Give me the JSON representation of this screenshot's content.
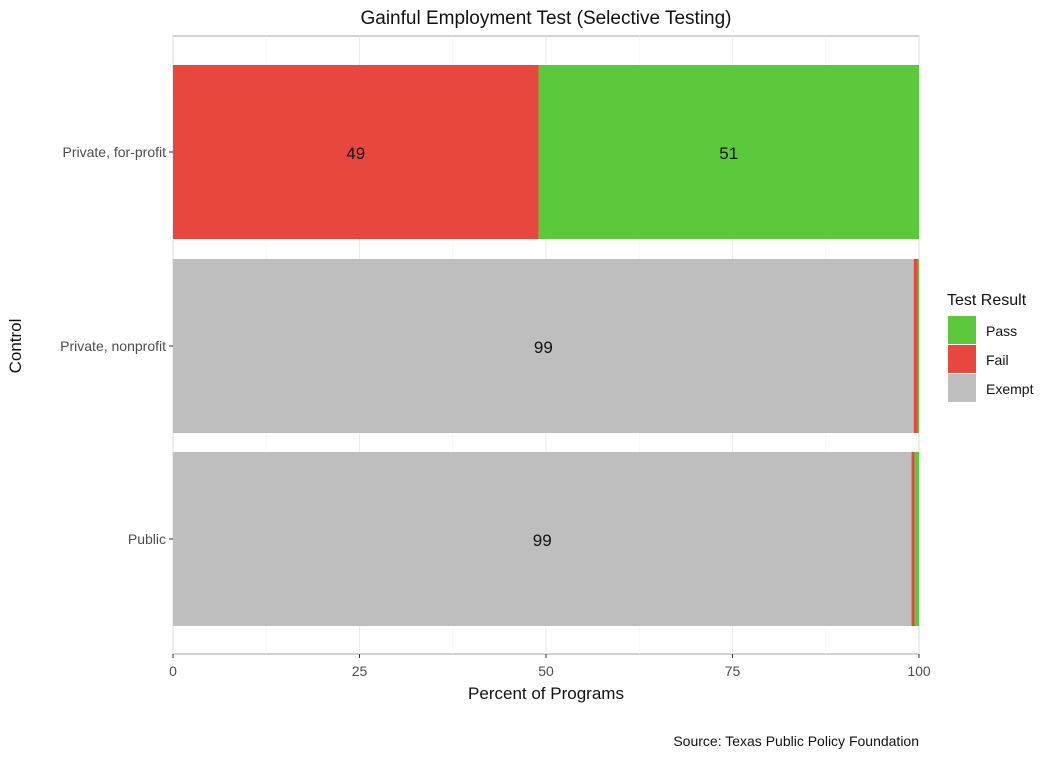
{
  "chart_data": {
    "type": "bar",
    "orientation": "horizontal",
    "stacked": true,
    "title": "Gainful Employment Test (Selective Testing)",
    "xlabel": "Percent of Programs",
    "ylabel": "Control",
    "xlim": [
      0,
      100
    ],
    "x_ticks": [
      0,
      25,
      50,
      75,
      100
    ],
    "x_tick_labels": [
      "0",
      "25",
      "50",
      "75",
      "100"
    ],
    "categories": [
      "Private, for-profit",
      "Private, nonprofit",
      "Public"
    ],
    "series": [
      {
        "name": "Exempt",
        "color": "#bebebe",
        "values": [
          0,
          99.3,
          99.0
        ]
      },
      {
        "name": "Fail",
        "color": "#e8473f",
        "values": [
          49,
          0.5,
          0.4
        ]
      },
      {
        "name": "Pass",
        "color": "#5bc93b",
        "values": [
          51,
          0.2,
          0.6
        ]
      }
    ],
    "data_labels": [
      {
        "category": "Private, for-profit",
        "series": "Fail",
        "text": "49"
      },
      {
        "category": "Private, for-profit",
        "series": "Pass",
        "text": "51"
      },
      {
        "category": "Private, nonprofit",
        "series": "Exempt",
        "text": "99"
      },
      {
        "category": "Public",
        "series": "Exempt",
        "text": "99"
      }
    ],
    "legend": {
      "title": "Test Result",
      "position": "right",
      "entries": [
        {
          "label": "Pass",
          "color": "#5bc93b"
        },
        {
          "label": "Fail",
          "color": "#e8473f"
        },
        {
          "label": "Exempt",
          "color": "#bebebe"
        }
      ]
    },
    "grid": true,
    "caption": "Source: Texas Public Policy Foundation"
  }
}
